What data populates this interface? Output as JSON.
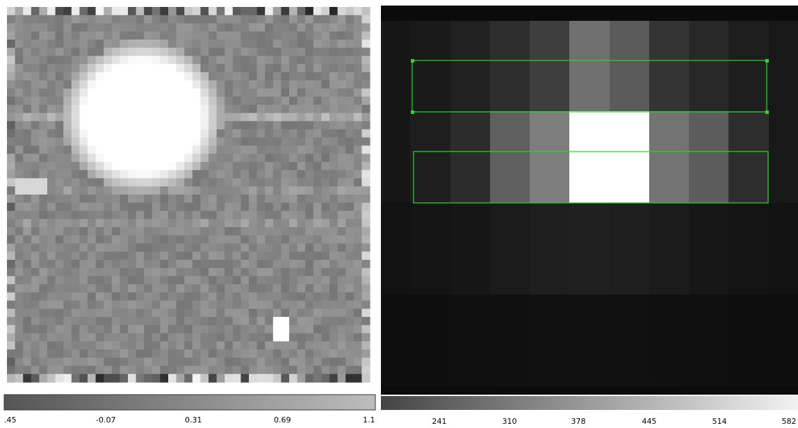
{
  "left_viewer": {
    "colorbar_labels": [
      ".45",
      "-0.07",
      "0.31",
      "0.69",
      "1.1"
    ]
  },
  "right_viewer": {
    "colorbar_labels": [
      "241",
      "310",
      "378",
      "445",
      "514",
      "582"
    ]
  }
}
